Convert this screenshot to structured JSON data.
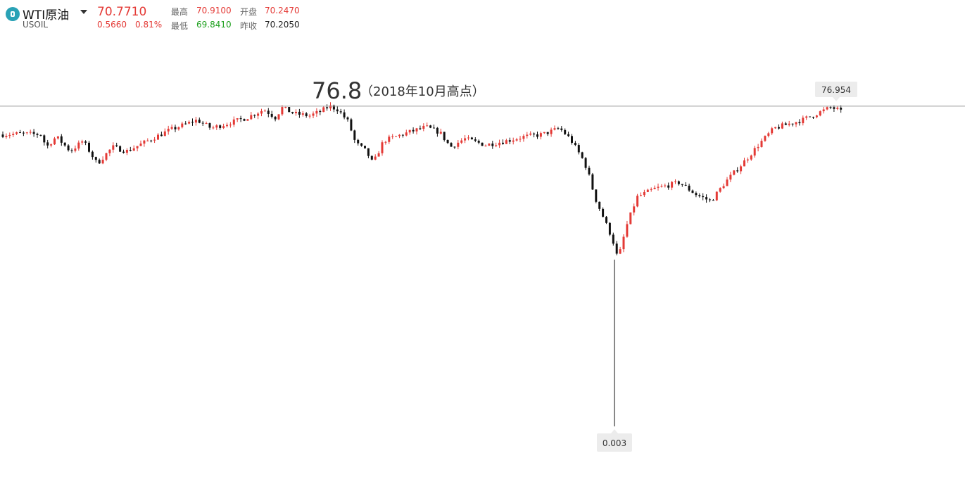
{
  "header": {
    "logo_icon": "oil-symbol-icon",
    "name": "WTI原油",
    "code": "USOIL",
    "price": "70.7710",
    "change": "0.5660",
    "change_pct": "0.81%",
    "high_label": "最高",
    "high": "70.9100",
    "open_label": "开盘",
    "open": "70.2470",
    "low_label": "最低",
    "low": "69.8410",
    "prev_close_label": "昨收",
    "prev_close": "70.2050"
  },
  "colors": {
    "up": "#e43a36",
    "down": "#111111",
    "accent": "#2aa2b6",
    "low_value": "#1ea01e"
  },
  "chart_data": {
    "type": "candlestick",
    "reference_line": {
      "value": 76.8,
      "label": "76.8",
      "note": "（2018年10月高点）"
    },
    "max_label": "76.954",
    "min_label": "0.003",
    "x": [],
    "y_range": [
      0.003,
      76.954
    ]
  }
}
